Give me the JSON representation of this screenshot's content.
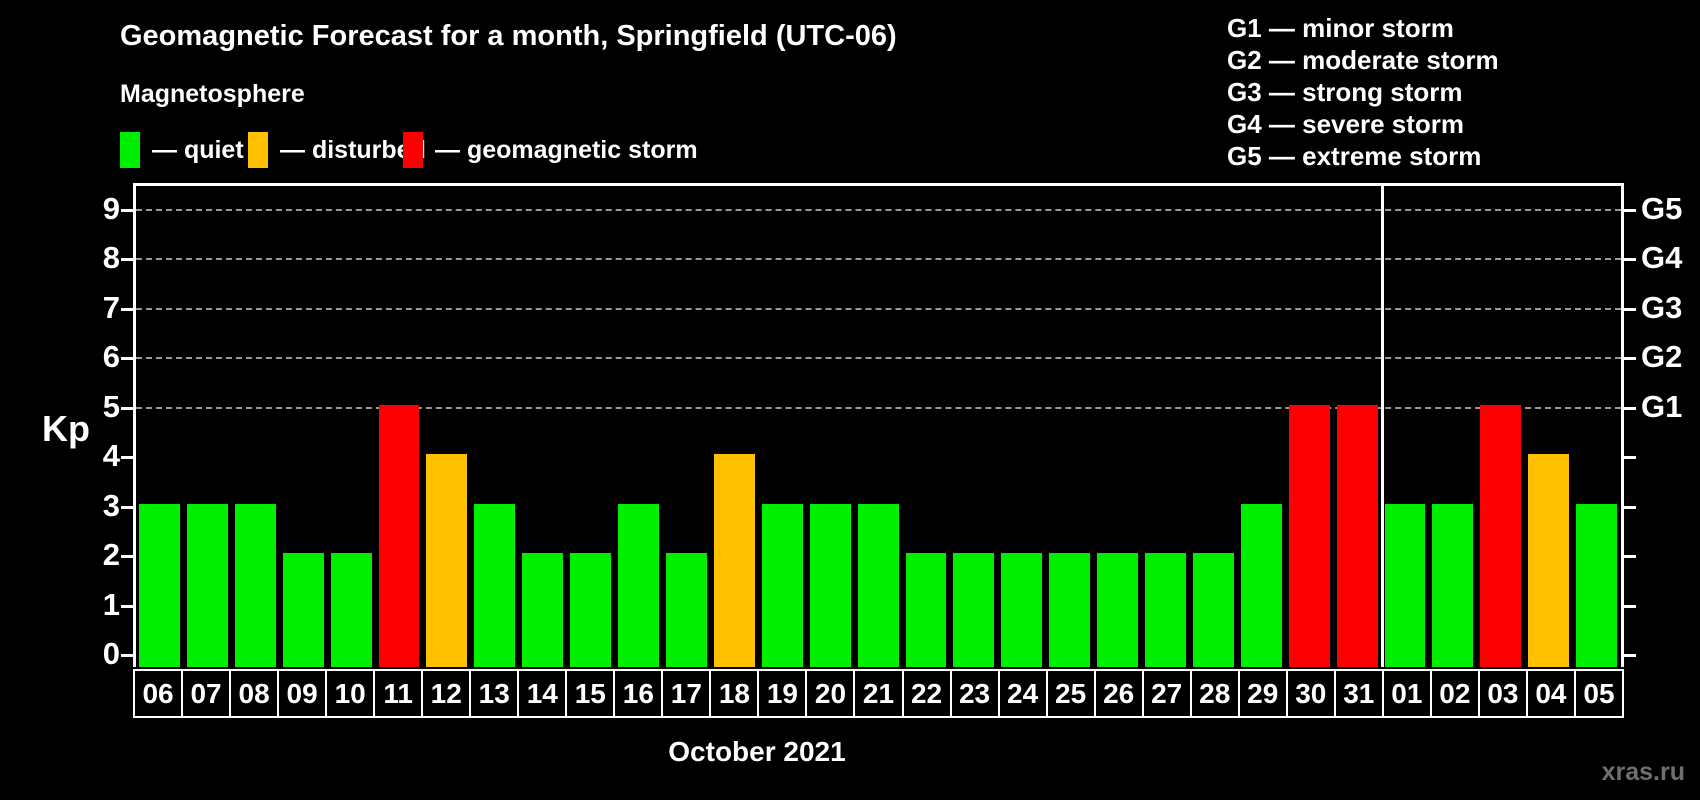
{
  "title": "Geomagnetic Forecast for a month, Springfield (UTC-06)",
  "subtitle": "Magnetosphere",
  "legend": {
    "items": [
      {
        "status": "quiet",
        "label": "— quiet",
        "color": "#00ee00"
      },
      {
        "status": "disturbed",
        "label": "— disturbed",
        "color": "#ffc000"
      },
      {
        "status": "storm",
        "label": "— geomagnetic storm",
        "color": "#fb0000"
      }
    ]
  },
  "g_scale_legend": [
    "G1 — minor storm",
    "G2 — moderate storm",
    "G3 — strong storm",
    "G4 — severe storm",
    "G5 — extreme storm"
  ],
  "watermark": "xras.ru",
  "chart_data": {
    "type": "bar",
    "title": "Geomagnetic Forecast for a month, Springfield (UTC-06)",
    "subtitle": "Magnetosphere",
    "xlabel": "October 2021",
    "ylabel": "Kp",
    "ylim": [
      0,
      9
    ],
    "grid": "horizontal dashed gridlines at Kp 5,6,7,8,9 only",
    "legend_position": "top-left",
    "y_ticks_left": [
      "0",
      "1",
      "2",
      "3",
      "4",
      "5",
      "6",
      "7",
      "8",
      "9"
    ],
    "y_ticks_right_labels": [
      "G1",
      "G2",
      "G3",
      "G4",
      "G5"
    ],
    "y_ticks_right_kp_levels": [
      5,
      6,
      7,
      8,
      9
    ],
    "categories": [
      "06",
      "07",
      "08",
      "09",
      "10",
      "11",
      "12",
      "13",
      "14",
      "15",
      "16",
      "17",
      "18",
      "19",
      "20",
      "21",
      "22",
      "23",
      "24",
      "25",
      "26",
      "27",
      "28",
      "29",
      "30",
      "31",
      "01",
      "02",
      "03",
      "04",
      "05"
    ],
    "values": [
      3,
      3,
      3,
      2,
      2,
      5,
      4,
      3,
      2,
      2,
      3,
      2,
      4,
      3,
      3,
      3,
      2,
      2,
      2,
      2,
      2,
      2,
      2,
      3,
      5,
      5,
      3,
      3,
      5,
      4,
      3
    ],
    "statuses": [
      "quiet",
      "quiet",
      "quiet",
      "quiet",
      "quiet",
      "storm",
      "disturbed",
      "quiet",
      "quiet",
      "quiet",
      "quiet",
      "quiet",
      "disturbed",
      "quiet",
      "quiet",
      "quiet",
      "quiet",
      "quiet",
      "quiet",
      "quiet",
      "quiet",
      "quiet",
      "quiet",
      "quiet",
      "storm",
      "storm",
      "quiet",
      "quiet",
      "storm",
      "disturbed",
      "quiet"
    ],
    "colors": {
      "quiet": "#00ee00",
      "disturbed": "#ffc000",
      "storm": "#fb0000"
    },
    "month_separator_after_index": 25
  }
}
